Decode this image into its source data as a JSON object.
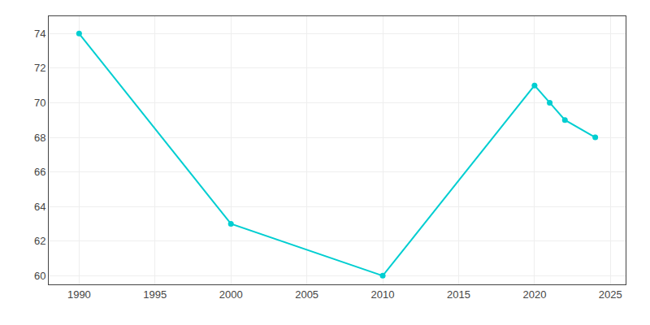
{
  "chart_data": {
    "type": "line",
    "x": [
      1990,
      2000,
      2010,
      2020,
      2021,
      2022,
      2024
    ],
    "values": [
      74,
      63,
      60,
      71,
      70,
      69,
      68
    ],
    "color": "#00CED1",
    "marker": "circle",
    "xlim": [
      1988,
      2026
    ],
    "ylim": [
      59.5,
      75
    ],
    "xticks": [
      1990,
      1995,
      2000,
      2005,
      2010,
      2015,
      2020,
      2025
    ],
    "yticks": [
      60,
      62,
      64,
      66,
      68,
      70,
      72,
      74
    ],
    "grid": true
  }
}
